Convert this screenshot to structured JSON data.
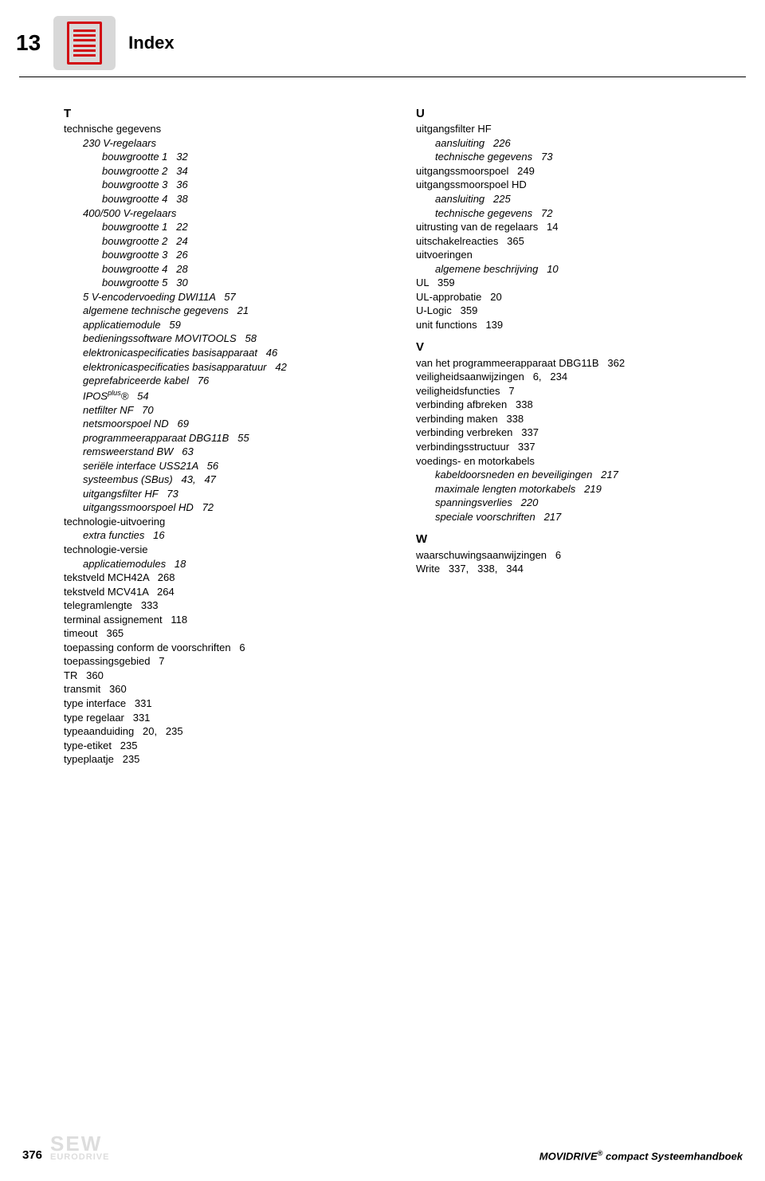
{
  "chapter": "13",
  "title": "Index",
  "icon_color": "#d20a11",
  "icon_bg": "#d8d8d8",
  "left": [
    {
      "cls": "letter",
      "txt": "T"
    },
    {
      "cls": "l0",
      "txt": "technische gegevens"
    },
    {
      "cls": "l1 italic",
      "txt": "230 V-regelaars"
    },
    {
      "cls": "l2 italic",
      "txt": "bouwgrootte 1   32"
    },
    {
      "cls": "l2 italic",
      "txt": "bouwgrootte 2   34"
    },
    {
      "cls": "l2 italic",
      "txt": "bouwgrootte 3   36"
    },
    {
      "cls": "l2 italic",
      "txt": "bouwgrootte 4   38"
    },
    {
      "cls": "l1 italic",
      "txt": "400/500 V-regelaars"
    },
    {
      "cls": "l2 italic",
      "txt": "bouwgrootte 1   22"
    },
    {
      "cls": "l2 italic",
      "txt": "bouwgrootte 2   24"
    },
    {
      "cls": "l2 italic",
      "txt": "bouwgrootte 3   26"
    },
    {
      "cls": "l2 italic",
      "txt": "bouwgrootte 4   28"
    },
    {
      "cls": "l2 italic",
      "txt": "bouwgrootte 5   30"
    },
    {
      "cls": "l1 italic",
      "txt": "5 V-encodervoeding DWI11A   57"
    },
    {
      "cls": "l1 italic",
      "txt": "algemene technische gegevens   21"
    },
    {
      "cls": "l1 italic",
      "txt": "applicatiemodule   59"
    },
    {
      "cls": "l1 italic",
      "txt": "bedieningssoftware MOVITOOLS   58"
    },
    {
      "cls": "l1 italic",
      "txt": "elektronicaspecificaties basisapparaat   46"
    },
    {
      "cls": "l1 italic",
      "txt": "elektronicaspecificaties basisapparatuur   42"
    },
    {
      "cls": "l1 italic",
      "txt": "geprefabriceerde kabel   76"
    },
    {
      "cls": "l1 italic",
      "html": "IPOS<sup>plus</sup>®   54"
    },
    {
      "cls": "l1 italic",
      "txt": "netfilter NF   70"
    },
    {
      "cls": "l1 italic",
      "txt": "netsmoorspoel ND   69"
    },
    {
      "cls": "l1 italic",
      "txt": "programmeerapparaat DBG11B   55"
    },
    {
      "cls": "l1 italic",
      "txt": "remsweerstand BW   63"
    },
    {
      "cls": "l1 italic",
      "txt": "seriële interface USS21A   56"
    },
    {
      "cls": "l1 italic",
      "txt": "systeembus (SBus)   43,   47"
    },
    {
      "cls": "l1 italic",
      "txt": "uitgangsfilter HF   73"
    },
    {
      "cls": "l1 italic",
      "txt": "uitgangssmoorspoel HD   72"
    },
    {
      "cls": "l0",
      "txt": "technologie-uitvoering"
    },
    {
      "cls": "l1 italic",
      "txt": "extra functies   16"
    },
    {
      "cls": "l0",
      "txt": "technologie-versie"
    },
    {
      "cls": "l1 italic",
      "txt": "applicatiemodules   18"
    },
    {
      "cls": "l0",
      "txt": "tekstveld MCH42A   268"
    },
    {
      "cls": "l0",
      "txt": "tekstveld MCV41A   264"
    },
    {
      "cls": "l0",
      "txt": "telegramlengte   333"
    },
    {
      "cls": "l0",
      "txt": "terminal assignement   118"
    },
    {
      "cls": "l0",
      "txt": "timeout   365"
    },
    {
      "cls": "l0",
      "txt": "toepassing conform de voorschriften   6"
    },
    {
      "cls": "l0",
      "txt": "toepassingsgebied   7"
    },
    {
      "cls": "l0",
      "txt": "TR   360"
    },
    {
      "cls": "l0",
      "txt": "transmit   360"
    },
    {
      "cls": "l0",
      "txt": "type interface   331"
    },
    {
      "cls": "l0",
      "txt": "type regelaar   331"
    },
    {
      "cls": "l0",
      "txt": "typeaanduiding   20,   235"
    },
    {
      "cls": "l0",
      "txt": "type-etiket   235"
    },
    {
      "cls": "l0",
      "txt": "typeplaatje   235"
    }
  ],
  "right": [
    {
      "cls": "letter",
      "txt": "U"
    },
    {
      "cls": "l0",
      "txt": "uitgangsfilter HF"
    },
    {
      "cls": "l1 italic",
      "txt": "aansluiting   226"
    },
    {
      "cls": "l1 italic",
      "txt": "technische gegevens   73"
    },
    {
      "cls": "l0",
      "txt": "uitgangssmoorspoel   249"
    },
    {
      "cls": "l0",
      "txt": "uitgangssmoorspoel HD"
    },
    {
      "cls": "l1 italic",
      "txt": "aansluiting   225"
    },
    {
      "cls": "l1 italic",
      "txt": "technische gegevens   72"
    },
    {
      "cls": "l0",
      "txt": "uitrusting van de regelaars   14"
    },
    {
      "cls": "l0",
      "txt": "uitschakelreacties   365"
    },
    {
      "cls": "l0",
      "txt": "uitvoeringen"
    },
    {
      "cls": "l1 italic",
      "txt": "algemene beschrijving   10"
    },
    {
      "cls": "l0",
      "txt": "UL   359"
    },
    {
      "cls": "l0",
      "txt": "UL-approbatie   20"
    },
    {
      "cls": "l0",
      "txt": "U-Logic   359"
    },
    {
      "cls": "l0",
      "txt": "unit functions   139"
    },
    {
      "cls": "letter gap",
      "txt": "V"
    },
    {
      "cls": "l0",
      "txt": "van het programmeerapparaat DBG11B   362"
    },
    {
      "cls": "l0",
      "txt": "veiligheidsaanwijzingen   6,   234"
    },
    {
      "cls": "l0",
      "txt": "veiligheidsfuncties   7"
    },
    {
      "cls": "l0",
      "txt": "verbinding afbreken   338"
    },
    {
      "cls": "l0",
      "txt": "verbinding maken   338"
    },
    {
      "cls": "l0",
      "txt": "verbinding verbreken   337"
    },
    {
      "cls": "l0",
      "txt": "verbindingsstructuur   337"
    },
    {
      "cls": "l0",
      "txt": "voedings- en motorkabels"
    },
    {
      "cls": "l1 italic",
      "txt": "kabeldoorsneden en beveiligingen   217"
    },
    {
      "cls": "l1 italic",
      "txt": "maximale lengten motorkabels   219"
    },
    {
      "cls": "l1 italic",
      "txt": "spanningsverlies   220"
    },
    {
      "cls": "l1 italic",
      "txt": "speciale voorschriften   217"
    },
    {
      "cls": "letter gap",
      "txt": "W"
    },
    {
      "cls": "l0",
      "txt": "waarschuwingsaanwijzingen   6"
    },
    {
      "cls": "l0",
      "txt": "Write   337,   338,   344"
    }
  ],
  "footer": {
    "page": "376",
    "logo_top": "SEW",
    "logo_bottom": "EURODRIVE",
    "product": "MOVIDRIVE",
    "suffix": " compact Systeemhandboek"
  }
}
